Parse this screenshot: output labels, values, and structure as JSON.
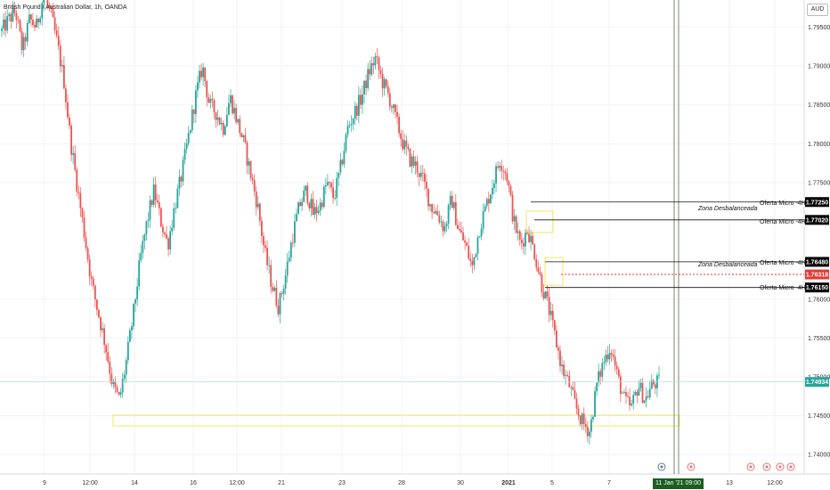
{
  "header": {
    "title": "British Pound / Australian Dollar, 1h, OANDA",
    "currency": "AUD"
  },
  "price_axis": {
    "ticks": [
      "1.79500",
      "1.79000",
      "1.78500",
      "1.78000",
      "1.77500",
      "1.76000",
      "1.75500",
      "1.75000",
      "1.74500",
      "1.74000"
    ],
    "badges": [
      {
        "label": "1.77250",
        "value": 1.7725,
        "color": "#000000"
      },
      {
        "label": "1.77020",
        "value": 1.7702,
        "color": "#000000"
      },
      {
        "label": "1.76480",
        "value": 1.7648,
        "color": "#000000"
      },
      {
        "label": "1.76318",
        "value": 1.76318,
        "color": "#e53935"
      },
      {
        "label": "1.76150",
        "value": 1.7615,
        "color": "#000000"
      },
      {
        "label": "1.74934",
        "value": 1.74934,
        "color": "#26a69a"
      }
    ]
  },
  "time_axis": {
    "ticks": [
      "9",
      "12:00",
      "14",
      "16",
      "12:00",
      "21",
      "23",
      "28",
      "30",
      "2021",
      "5",
      "7",
      "13",
      "12:00"
    ],
    "current_date": "11 Jan '21  09:00"
  },
  "annotations": {
    "oferta_label": "Oferta Micro -4H",
    "zona_label": "Zona Desbalanceada"
  },
  "colors": {
    "bull": "#26a69a",
    "bear": "#ef5350",
    "zone": "#f5e663",
    "last_price": "#26a69a"
  },
  "chart_data": {
    "type": "candlestick",
    "symbol": "British Pound / Australian Dollar",
    "interval": "1h",
    "ylim": [
      1.7375,
      1.7985
    ],
    "key_levels": [
      1.7725,
      1.7702,
      1.7648,
      1.76318,
      1.7615
    ],
    "last_price": 1.74934,
    "path": [
      1.7945,
      1.796,
      1.797,
      1.792,
      1.796,
      1.795,
      1.799,
      1.797,
      1.793,
      1.788,
      1.78,
      1.774,
      1.768,
      1.762,
      1.758,
      1.754,
      1.749,
      1.747,
      1.752,
      1.758,
      1.765,
      1.77,
      1.774,
      1.77,
      1.767,
      1.772,
      1.776,
      1.781,
      1.786,
      1.79,
      1.785,
      1.784,
      1.782,
      1.786,
      1.783,
      1.78,
      1.776,
      1.772,
      1.766,
      1.762,
      1.759,
      1.763,
      1.768,
      1.772,
      1.774,
      1.771,
      1.772,
      1.775,
      1.773,
      1.777,
      1.782,
      1.784,
      1.786,
      1.789,
      1.791,
      1.788,
      1.786,
      1.783,
      1.78,
      1.778,
      1.777,
      1.775,
      1.772,
      1.771,
      1.769,
      1.773,
      1.769,
      1.767,
      1.764,
      1.769,
      1.772,
      1.775,
      1.778,
      1.776,
      1.77,
      1.767,
      1.769,
      1.766,
      1.762,
      1.759,
      1.755,
      1.751,
      1.749,
      1.746,
      1.744,
      1.743,
      1.749,
      1.752,
      1.754,
      1.75,
      1.747,
      1.746,
      1.749,
      1.747,
      1.749,
      1.7493
    ]
  }
}
